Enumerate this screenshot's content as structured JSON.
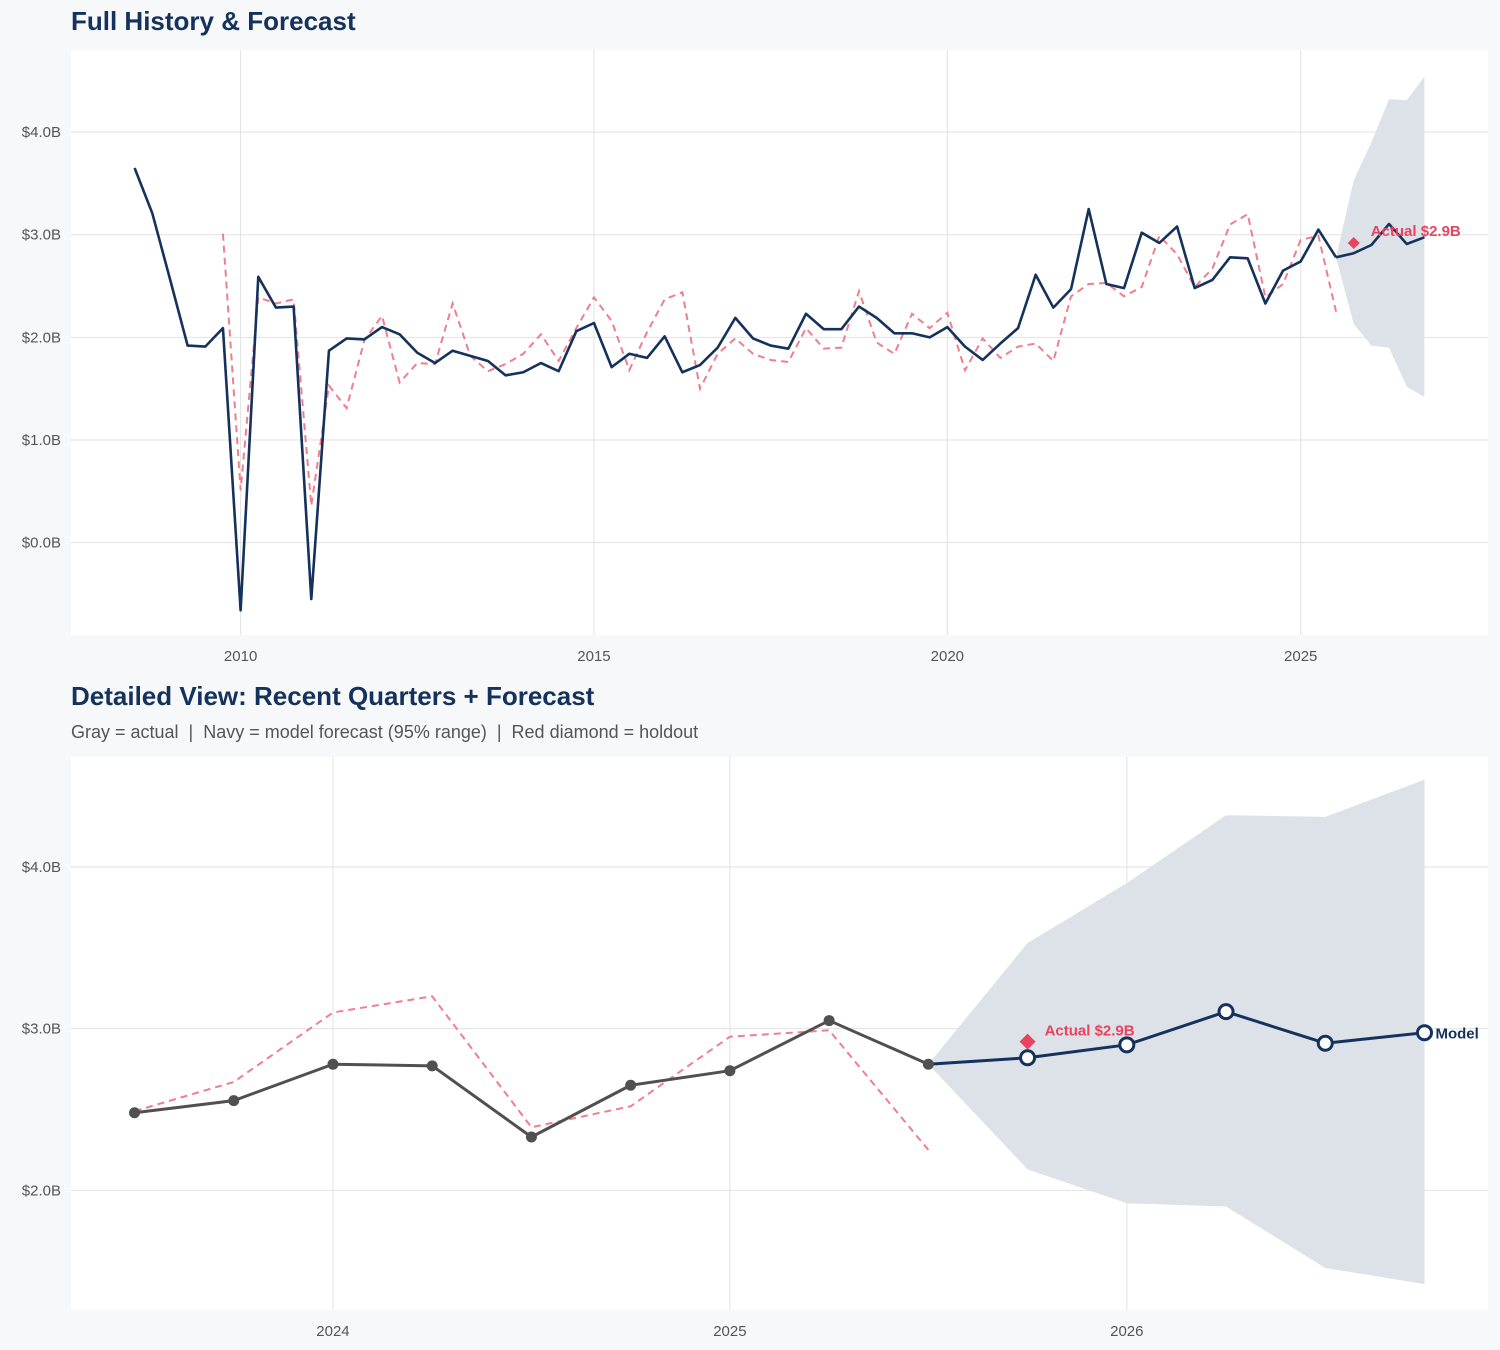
{
  "colors": {
    "navy": "#14325c",
    "actual_gray": "#505050",
    "fitted_red": "#ef7f8f",
    "holdout_red": "#e8435f",
    "band": "#dbe0e7",
    "background": "#f7f8fa"
  },
  "chart_data": [
    {
      "type": "line",
      "title": "Full History & Forecast",
      "subtitle": "",
      "xlim": [
        2007.6,
        2027.65
      ],
      "ylim": [
        -0.9,
        4.8
      ],
      "grid": true,
      "x_ticks": [
        2010,
        2015,
        2020,
        2025
      ],
      "x_tick_labels": [
        "2010",
        "2015",
        "2020",
        "2025"
      ],
      "y_ticks": [
        0,
        1,
        2,
        3,
        4
      ],
      "y_tick_labels": [
        "$0.0B",
        "$1.0B",
        "$2.0B",
        "$3.0B",
        "$4.0B"
      ],
      "x_start": 2008.5,
      "x_step": 0.25,
      "actual": {
        "color": "#14325c",
        "style": "solid",
        "markers": false,
        "values": [
          3.65,
          3.21,
          2.57,
          1.92,
          1.91,
          2.09,
          -0.66,
          2.59,
          2.29,
          2.3,
          -0.55,
          1.87,
          1.99,
          1.98,
          2.1,
          2.03,
          1.85,
          1.75,
          1.87,
          1.82,
          1.77,
          1.63,
          1.66,
          1.75,
          1.67,
          2.06,
          2.14,
          1.71,
          1.84,
          1.8,
          2.01,
          1.66,
          1.73,
          1.9,
          2.19,
          1.99,
          1.92,
          1.89,
          2.23,
          2.08,
          2.08,
          2.3,
          2.19,
          2.04,
          2.04,
          2.0,
          2.1,
          1.91,
          1.78,
          1.94,
          2.09,
          2.61,
          2.29,
          2.47,
          3.25,
          2.52,
          2.48,
          3.02,
          2.92,
          3.08,
          2.48,
          2.56,
          2.78,
          2.77,
          2.33,
          2.65,
          2.74,
          3.05,
          2.78
        ]
      },
      "fitted": {
        "color": "#ef7f8f",
        "style": "dashed",
        "x_start": 2009.75,
        "values": [
          3.01,
          0.51,
          2.39,
          2.33,
          2.37,
          0.36,
          1.53,
          1.31,
          1.97,
          2.21,
          1.56,
          1.75,
          1.74,
          2.33,
          1.82,
          1.67,
          1.74,
          1.84,
          2.03,
          1.77,
          2.09,
          2.39,
          2.16,
          1.68,
          2.05,
          2.37,
          2.44,
          1.5,
          1.84,
          1.99,
          1.84,
          1.78,
          1.76,
          2.09,
          1.89,
          1.9,
          2.45,
          1.95,
          1.84,
          2.23,
          2.09,
          2.24,
          1.68,
          1.99,
          1.8,
          1.91,
          1.94,
          1.77,
          2.4,
          2.52,
          2.53,
          2.4,
          2.49,
          2.99,
          2.81,
          2.49,
          2.67,
          3.1,
          3.2,
          2.39,
          2.52,
          2.95,
          2.99,
          2.25
        ]
      },
      "forecast": {
        "color": "#14325c",
        "markers": false,
        "x": [
          2025.5,
          2025.75,
          2026.0,
          2026.25,
          2026.5,
          2026.75
        ],
        "values": [
          2.78,
          2.82,
          2.9,
          3.105,
          2.91,
          2.975
        ],
        "lower": [
          2.78,
          2.13,
          1.92,
          1.9,
          1.52,
          1.42
        ],
        "upper": [
          2.78,
          3.53,
          3.9,
          4.32,
          4.31,
          4.54
        ]
      },
      "holdout": {
        "x": 2025.75,
        "value": 2.92,
        "label": "Actual $2.9B"
      },
      "end_label": ""
    },
    {
      "type": "line",
      "title": "Detailed View: Recent Quarters + Forecast",
      "subtitle": "Gray = actual  |  Navy = model forecast (95% range)  |  Red diamond = holdout",
      "xlim": [
        2023.34,
        2026.91
      ],
      "ylim": [
        1.26,
        4.68
      ],
      "grid": true,
      "x_ticks": [
        2024,
        2025,
        2026
      ],
      "x_tick_labels": [
        "2024",
        "2025",
        "2026"
      ],
      "y_ticks": [
        2,
        3,
        4
      ],
      "y_tick_labels": [
        "$2.0B",
        "$3.0B",
        "$4.0B"
      ],
      "x_start": 2023.5,
      "x_step": 0.25,
      "actual": {
        "color": "#505050",
        "style": "solid",
        "markers": true,
        "values": [
          2.48,
          2.555,
          2.78,
          2.77,
          2.33,
          2.65,
          2.74,
          3.05,
          2.78
        ]
      },
      "fitted": {
        "color": "#ef7f8f",
        "style": "dashed",
        "x_start": 2023.5,
        "values": [
          2.49,
          2.67,
          3.1,
          3.2,
          2.39,
          2.52,
          2.95,
          2.99,
          2.25
        ]
      },
      "forecast": {
        "color": "#14325c",
        "markers": true,
        "x": [
          2025.5,
          2025.75,
          2026.0,
          2026.25,
          2026.5,
          2026.75
        ],
        "values": [
          2.78,
          2.82,
          2.9,
          3.105,
          2.91,
          2.975
        ],
        "lower": [
          2.78,
          2.13,
          1.92,
          1.9,
          1.52,
          1.42
        ],
        "upper": [
          2.78,
          3.53,
          3.9,
          4.32,
          4.31,
          4.54
        ]
      },
      "holdout": {
        "x": 2025.75,
        "value": 2.92,
        "label": "Actual $2.9B"
      },
      "end_label": "Model"
    }
  ]
}
